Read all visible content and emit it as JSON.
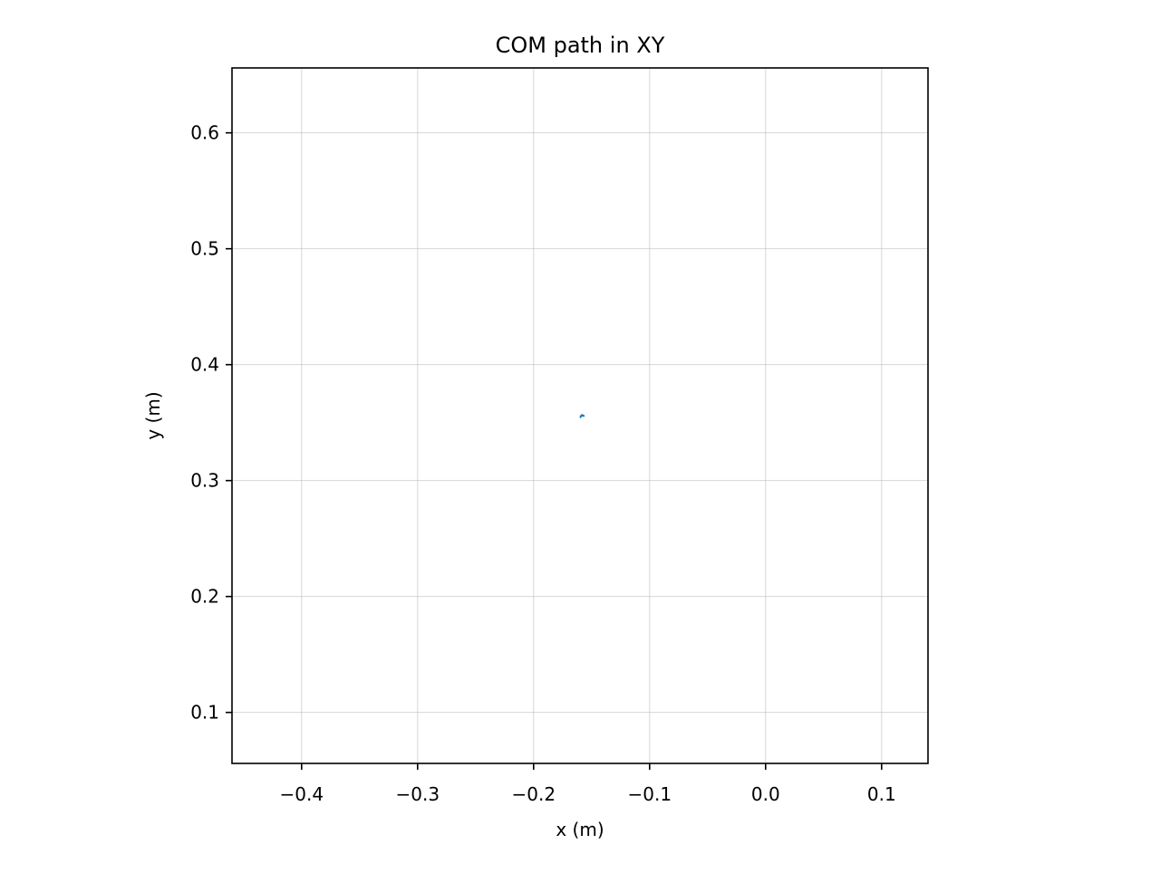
{
  "chart_data": {
    "type": "line",
    "title": "COM path in XY",
    "xlabel": "x (m)",
    "ylabel": "y (m)",
    "xlim": [
      -0.46,
      0.14
    ],
    "ylim": [
      0.056,
      0.656
    ],
    "xticks": [
      -0.4,
      -0.3,
      -0.2,
      -0.1,
      0.0,
      0.1
    ],
    "xtick_labels": [
      "−0.4",
      "−0.3",
      "−0.2",
      "−0.1",
      "0.0",
      "0.1"
    ],
    "yticks": [
      0.1,
      0.2,
      0.3,
      0.4,
      0.5,
      0.6
    ],
    "ytick_labels": [
      "0.1",
      "0.2",
      "0.3",
      "0.4",
      "0.5",
      "0.6"
    ],
    "grid": true,
    "aspect": "equal",
    "series": [
      {
        "color": "#1f77b4",
        "x": [
          -0.1595,
          -0.1588,
          -0.1581,
          -0.1576,
          -0.1572,
          -0.1568
        ],
        "y": [
          0.3548,
          0.3562,
          0.3565,
          0.3563,
          0.356,
          0.3558
        ]
      }
    ]
  }
}
